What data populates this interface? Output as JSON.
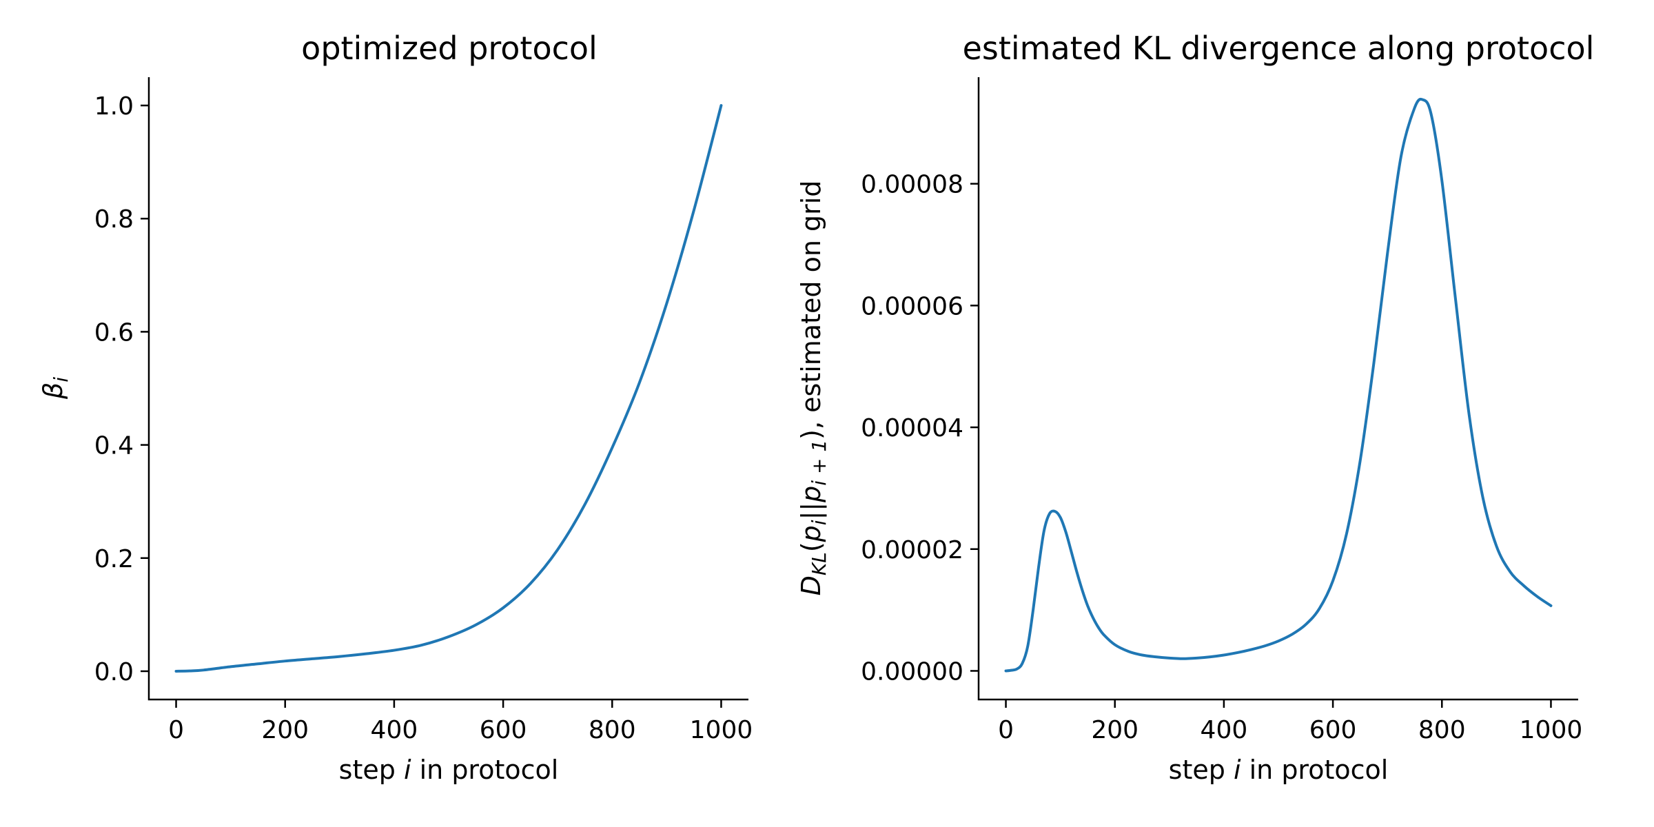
{
  "chart_data": [
    {
      "type": "line",
      "title": "optimized protocol",
      "xlabel": "step i in protocol",
      "ylabel": "β_i",
      "xlim": [
        -50,
        1050
      ],
      "ylim": [
        -0.05,
        1.05
      ],
      "xticks": [
        0,
        200,
        400,
        600,
        800,
        1000
      ],
      "yticks": [
        0.0,
        0.2,
        0.4,
        0.6,
        0.8,
        1.0
      ],
      "xtick_labels": [
        "0",
        "200",
        "400",
        "600",
        "800",
        "1000"
      ],
      "ytick_labels": [
        "0.0",
        "0.2",
        "0.4",
        "0.6",
        "0.8",
        "1.0"
      ],
      "grid": false,
      "color": "#1f77b4",
      "x": [
        0,
        25,
        50,
        100,
        150,
        200,
        250,
        300,
        350,
        400,
        450,
        500,
        550,
        600,
        650,
        700,
        750,
        800,
        850,
        900,
        950,
        1000
      ],
      "y": [
        0.0,
        0.0005,
        0.002,
        0.008,
        0.013,
        0.018,
        0.022,
        0.026,
        0.031,
        0.037,
        0.046,
        0.061,
        0.082,
        0.112,
        0.155,
        0.215,
        0.295,
        0.395,
        0.51,
        0.65,
        0.815,
        1.0
      ]
    },
    {
      "type": "line",
      "title": "estimated KL divergence along protocol",
      "xlabel": "step i in protocol",
      "ylabel": "D_KL(p_i||p_i+1), estimated on grid",
      "xlim": [
        -50,
        1050
      ],
      "ylim": [
        -4.7e-06,
        9.75e-05
      ],
      "xticks": [
        0,
        200,
        400,
        600,
        800,
        1000
      ],
      "yticks": [
        0,
        2e-05,
        4e-05,
        6e-05,
        8e-05
      ],
      "xtick_labels": [
        "0",
        "200",
        "400",
        "600",
        "800",
        "1000"
      ],
      "ytick_labels": [
        "0.00000",
        "0.00002",
        "0.00004",
        "0.00006",
        "0.00008"
      ],
      "grid": false,
      "color": "#1f77b4",
      "x": [
        0,
        10,
        20,
        30,
        40,
        50,
        60,
        70,
        80,
        90,
        100,
        110,
        120,
        130,
        140,
        150,
        160,
        170,
        180,
        200,
        225,
        250,
        275,
        300,
        325,
        350,
        375,
        400,
        425,
        450,
        475,
        500,
        525,
        550,
        575,
        600,
        625,
        650,
        675,
        700,
        725,
        750,
        765,
        780,
        800,
        825,
        850,
        875,
        900,
        925,
        950,
        975,
        1000
      ],
      "y": [
        0.0,
        1e-07,
        3e-07,
        1.2e-06,
        4e-06,
        1e-05,
        1.7e-05,
        2.3e-05,
        2.58e-05,
        2.62e-05,
        2.52e-05,
        2.28e-05,
        1.96e-05,
        1.63e-05,
        1.33e-05,
        1.07e-05,
        8.7e-06,
        7.1e-06,
        5.9e-06,
        4.3e-06,
        3.2e-06,
        2.6e-06,
        2.3e-06,
        2.1e-06,
        2e-06,
        2.1e-06,
        2.3e-06,
        2.6e-06,
        3e-06,
        3.5e-06,
        4.1e-06,
        4.9e-06,
        6e-06,
        7.6e-06,
        1.02e-05,
        1.48e-05,
        2.25e-05,
        3.45e-05,
        5.05e-05,
        6.85e-05,
        8.45e-05,
        9.25e-05,
        9.38e-05,
        9.15e-05,
        8.05e-05,
        6.1e-05,
        4.2e-05,
        2.85e-05,
        2.05e-05,
        1.63e-05,
        1.4e-05,
        1.22e-05,
        1.07e-05
      ]
    }
  ]
}
